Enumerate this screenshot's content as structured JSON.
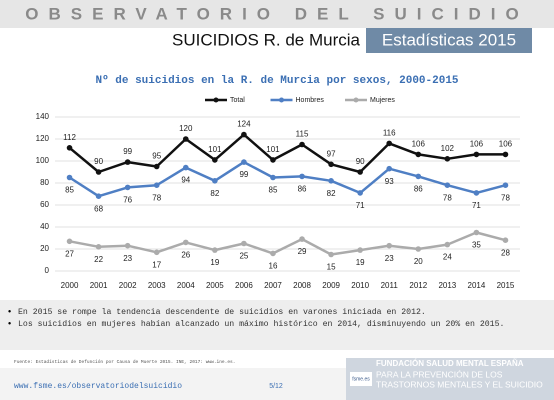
{
  "header": {
    "banner": "OBSERVATORIO DEL SUICIDIO",
    "title": "SUICIDIOS R. de Murcia",
    "badge": "Estadísticas 2015"
  },
  "chart_data": {
    "type": "line",
    "title": "Nº de suicidios en la R. de Murcia por sexos, 2000-2015",
    "categories": [
      "2000",
      "2001",
      "2002",
      "2003",
      "2004",
      "2005",
      "2006",
      "2007",
      "2008",
      "2009",
      "2010",
      "2011",
      "2012",
      "2013",
      "2014",
      "2015"
    ],
    "series": [
      {
        "name": "Total",
        "color": "#111111",
        "values": [
          112,
          90,
          99,
          95,
          120,
          101,
          124,
          101,
          115,
          97,
          90,
          116,
          106,
          102,
          106,
          106
        ]
      },
      {
        "name": "Hombres",
        "color": "#4f7fc4",
        "values": [
          85,
          68,
          76,
          78,
          94,
          82,
          99,
          85,
          86,
          82,
          71,
          93,
          86,
          78,
          71,
          78
        ]
      },
      {
        "name": "Mujeres",
        "color": "#ababab",
        "values": [
          27,
          22,
          23,
          17,
          26,
          19,
          25,
          16,
          29,
          15,
          19,
          23,
          20,
          24,
          35,
          28
        ]
      }
    ],
    "ylim": [
      0,
      140
    ],
    "yticks": [
      0,
      20,
      40,
      60,
      80,
      100,
      120,
      140
    ],
    "grid": true,
    "legend": "top"
  },
  "bullets": [
    "En 2015 se rompe la tendencia descendente de suicidios en varones iniciada en 2012.",
    "Los suicidios en mujeres habían alcanzado un máximo histórico en 2014, disminuyendo un 20% en 2015."
  ],
  "source": "Fuente: Estadísticas de Defunción por Causa de Muerte 2015. INE, 2017: www.ine.es.",
  "footer": {
    "url": "www.fsme.es/observatoriodelsuicidio",
    "page": "5/12",
    "logo": "fsme.es",
    "org": [
      "FUNDACIÓN SALUD MENTAL ESPAÑA",
      "PARA LA PREVENCIÓN DE LOS",
      "TRASTORNOS MENTALES Y EL SUICIDIO"
    ]
  }
}
